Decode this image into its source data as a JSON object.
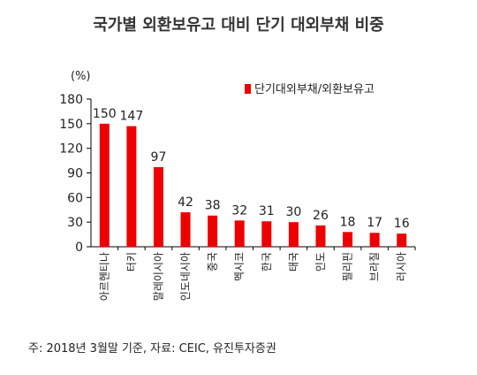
{
  "chart_data": {
    "type": "bar",
    "title": "국가별 외환보유고 대비 단기 대외부채 비중",
    "unit": "(%)",
    "legend": "단기대외부채/외환보유고",
    "legend_position": "top-right",
    "categories": [
      "아르헨티나",
      "터키",
      "말레이시아",
      "인도네시아",
      "중국",
      "멕시코",
      "한국",
      "태국",
      "인도",
      "필리핀",
      "브라질",
      "러시아"
    ],
    "values": [
      150,
      147,
      97,
      42,
      38,
      32,
      31,
      30,
      26,
      18,
      17,
      16
    ],
    "ylim": [
      0,
      180
    ],
    "yticks": [
      0,
      30,
      60,
      90,
      120,
      150,
      180
    ],
    "grid": false,
    "bar_color": "#ee0000",
    "data_labels": true
  },
  "source": "주: 2018년 3월말 기준, 자료: CEIC, 유진투자증권"
}
